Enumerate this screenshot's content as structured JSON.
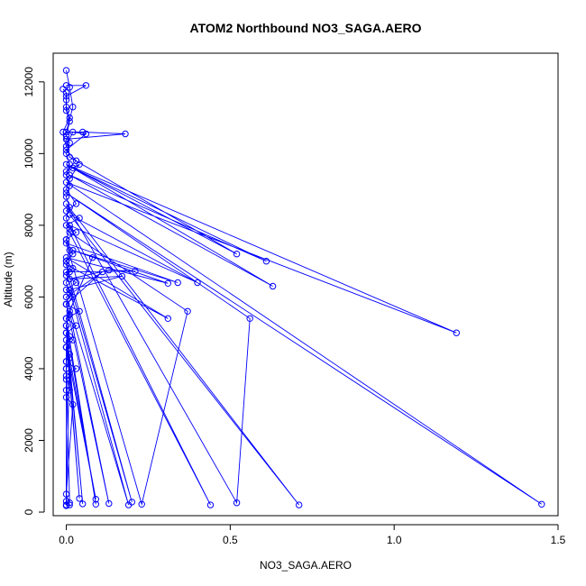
{
  "chart_data": {
    "type": "line",
    "title": "ATOM2 Northbound NO3_SAGA.AERO",
    "xlabel": "NO3_SAGA.AERO",
    "ylabel": "Altitude (m)",
    "xlim": [
      -0.04,
      1.5
    ],
    "ylim": [
      -100,
      12800
    ],
    "x_ticks": [
      0.0,
      0.5,
      1.0,
      1.5
    ],
    "x_tick_labels": [
      "0.0",
      "0.5",
      "1.0",
      "1.5"
    ],
    "y_ticks": [
      0,
      2000,
      4000,
      6000,
      8000,
      10000,
      12000
    ],
    "y_tick_labels": [
      "0",
      "2000",
      "4000",
      "6000",
      "8000",
      "10000",
      "12000"
    ],
    "grid": false,
    "legend": "none",
    "marker": "open-circle",
    "color": "#0000ff",
    "series": [
      {
        "points": [
          [
            0.0,
            12320
          ],
          [
            0.01,
            11850
          ],
          [
            0.02,
            11300
          ],
          [
            0.0,
            10600
          ],
          [
            0.05,
            10600
          ],
          [
            0.18,
            10550
          ],
          [
            0.0,
            10400
          ],
          [
            0.01,
            9900
          ],
          [
            0.52,
            7200
          ],
          [
            0.02,
            9600
          ],
          [
            0.61,
            7000
          ],
          [
            0.01,
            9400
          ],
          [
            0.63,
            6300
          ],
          [
            0.0,
            9700
          ],
          [
            1.19,
            5000
          ],
          [
            0.0,
            9200
          ],
          [
            1.45,
            220
          ],
          [
            0.0,
            8900
          ],
          [
            0.56,
            5400
          ],
          [
            0.52,
            260
          ],
          [
            0.0,
            8600
          ],
          [
            0.71,
            200
          ],
          [
            0.01,
            8300
          ],
          [
            0.4,
            6400
          ],
          [
            0.01,
            8000
          ],
          [
            0.44,
            200
          ],
          [
            0.01,
            7800
          ],
          [
            0.37,
            5600
          ],
          [
            0.23,
            220
          ],
          [
            0.0,
            7500
          ],
          [
            0.34,
            6400
          ],
          [
            0.02,
            7300
          ],
          [
            0.31,
            6380
          ],
          [
            0.0,
            7100
          ],
          [
            0.31,
            5400
          ],
          [
            0.0,
            6900
          ],
          [
            0.2,
            280
          ],
          [
            0.0,
            6700
          ],
          [
            0.21,
            6720
          ],
          [
            0.13,
            6750
          ],
          [
            0.01,
            6500
          ],
          [
            0.17,
            6580
          ],
          [
            0.01,
            6200
          ],
          [
            0.19,
            200
          ],
          [
            0.0,
            6000
          ],
          [
            0.11,
            6700
          ],
          [
            0.0,
            5800
          ],
          [
            0.13,
            240
          ],
          [
            0.01,
            5600
          ],
          [
            0.08,
            7100
          ],
          [
            0.0,
            5400
          ],
          [
            0.09,
            220
          ],
          [
            0.0,
            5200
          ],
          [
            0.05,
            230
          ],
          [
            0.0,
            5000
          ],
          [
            0.04,
            380
          ],
          [
            0.0,
            4800
          ],
          [
            0.09,
            360
          ],
          [
            0.0,
            4600
          ],
          [
            0.0,
            300
          ],
          [
            0.01,
            4400
          ],
          [
            0.0,
            200
          ],
          [
            0.0,
            4200
          ],
          [
            0.01,
            260
          ],
          [
            0.0,
            4000
          ]
        ]
      },
      {
        "points": [
          [
            0.0,
            11900
          ],
          [
            0.06,
            11900
          ],
          [
            0.0,
            11600
          ],
          [
            0.0,
            11300
          ],
          [
            0.01,
            11000
          ],
          [
            -0.01,
            10600
          ],
          [
            0.0,
            10200
          ],
          [
            0.02,
            10600
          ],
          [
            0.06,
            10550
          ],
          [
            0.0,
            10100
          ],
          [
            0.03,
            9800
          ],
          [
            0.0,
            9500
          ],
          [
            0.04,
            9700
          ],
          [
            0.01,
            9300
          ],
          [
            0.0,
            9000
          ],
          [
            0.03,
            8600
          ],
          [
            0.0,
            8400
          ],
          [
            0.04,
            8200
          ],
          [
            0.0,
            8000
          ],
          [
            0.03,
            7800
          ],
          [
            0.0,
            7600
          ],
          [
            0.02,
            7200
          ],
          [
            0.0,
            7000
          ],
          [
            0.02,
            6800
          ],
          [
            0.0,
            6600
          ],
          [
            0.03,
            6400
          ],
          [
            0.0,
            6200
          ],
          [
            0.02,
            6000
          ],
          [
            0.0,
            5800
          ],
          [
            0.04,
            5600
          ],
          [
            0.0,
            5400
          ],
          [
            0.03,
            5200
          ],
          [
            0.0,
            5000
          ],
          [
            0.02,
            4800
          ],
          [
            0.0,
            4600
          ],
          [
            0.01,
            4400
          ],
          [
            0.0,
            4200
          ],
          [
            0.03,
            4000
          ],
          [
            0.0,
            3800
          ],
          [
            0.01,
            3400
          ],
          [
            0.0,
            3200
          ],
          [
            0.02,
            3000
          ],
          [
            0.0,
            500
          ],
          [
            0.01,
            200
          ],
          [
            0.0,
            180
          ]
        ]
      },
      {
        "points": [
          [
            -0.01,
            11800
          ],
          [
            0.0,
            11700
          ],
          [
            0.0,
            11500
          ],
          [
            0.0,
            11200
          ],
          [
            0.01,
            10900
          ],
          [
            0.0,
            10500
          ],
          [
            0.01,
            10300
          ],
          [
            0.0,
            10000
          ],
          [
            0.01,
            9700
          ],
          [
            0.0,
            9400
          ],
          [
            0.01,
            9100
          ],
          [
            0.0,
            8800
          ],
          [
            0.01,
            8500
          ],
          [
            0.0,
            8200
          ],
          [
            0.01,
            7900
          ],
          [
            0.0,
            7600
          ],
          [
            0.01,
            7300
          ],
          [
            0.0,
            7000
          ],
          [
            0.01,
            6700
          ],
          [
            0.0,
            6400
          ],
          [
            0.01,
            6100
          ],
          [
            0.0,
            5800
          ],
          [
            0.01,
            5500
          ],
          [
            0.0,
            5200
          ],
          [
            0.01,
            4900
          ],
          [
            0.0,
            4600
          ],
          [
            0.01,
            4300
          ],
          [
            0.0,
            4000
          ],
          [
            0.0,
            3700
          ],
          [
            0.0,
            3400
          ]
        ]
      }
    ]
  }
}
